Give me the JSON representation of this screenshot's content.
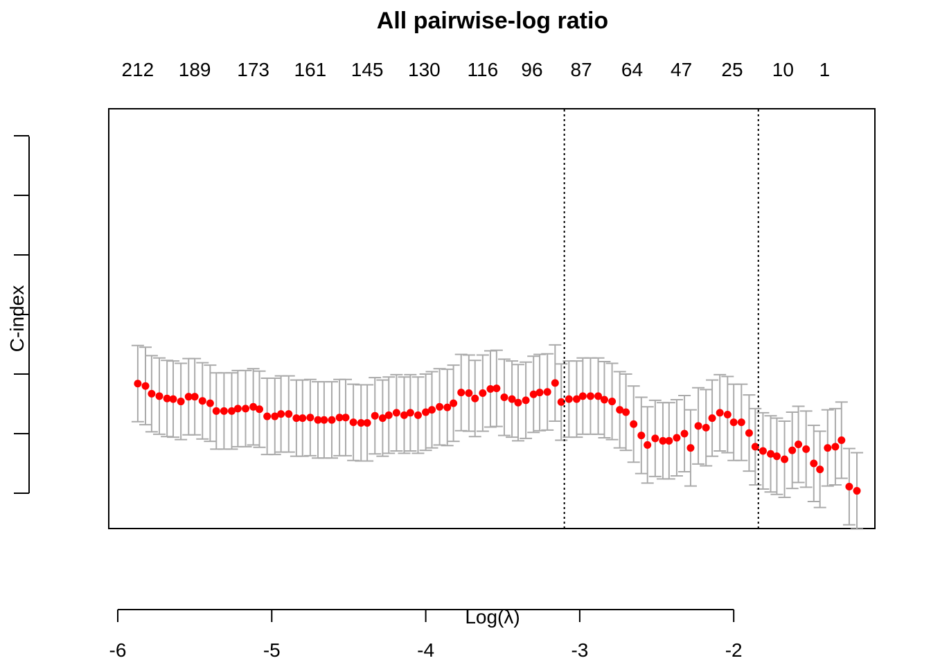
{
  "chart_data": {
    "type": "scatter",
    "title": "All pairwise-log ratio",
    "xlabel": "Log(λ)",
    "ylabel": "C-index",
    "xlim": [
      -6.0,
      -1.08
    ],
    "x_ticks": [
      "-6",
      "-5",
      "-4",
      "-3",
      "-2"
    ],
    "x_tick_values": [
      -6,
      -5,
      -4,
      -3,
      -2
    ],
    "top_ticks": [
      "212",
      "189",
      "173",
      "161",
      "145",
      "130",
      "116",
      "96",
      "87",
      "64",
      "47",
      "25",
      "10",
      "1"
    ],
    "top_tick_x": [
      -5.87,
      -5.5,
      -5.12,
      -4.75,
      -4.38,
      -4.01,
      -3.63,
      -3.31,
      -2.99,
      -2.66,
      -2.34,
      -2.01,
      -1.68,
      -1.41
    ],
    "vlines": [
      -3.1,
      -1.84
    ],
    "point_color": "#ff0000",
    "errorbar_color": "#aaaaaa",
    "series": [
      {
        "x": [
          -5.87,
          -5.82,
          -5.78,
          -5.73,
          -5.68,
          -5.64,
          -5.59,
          -5.54,
          -5.5,
          -5.45,
          -5.4,
          -5.36,
          -5.31,
          -5.26,
          -5.22,
          -5.17,
          -5.12,
          -5.08,
          -5.03,
          -4.98,
          -4.94,
          -4.89,
          -4.84,
          -4.8,
          -4.75,
          -4.7,
          -4.66,
          -4.61,
          -4.56,
          -4.52,
          -4.47,
          -4.42,
          -4.38,
          -4.33,
          -4.28,
          -4.24,
          -4.19,
          -4.14,
          -4.1,
          -4.05,
          -4.0,
          -3.96,
          -3.91,
          -3.86,
          -3.82,
          -3.77,
          -3.72,
          -3.68,
          -3.63,
          -3.58,
          -3.54,
          -3.49,
          -3.44,
          -3.4,
          -3.35,
          -3.3,
          -3.26,
          -3.21,
          -3.16,
          -3.12,
          -3.07,
          -3.02,
          -2.98,
          -2.93,
          -2.88,
          -2.84,
          -2.79,
          -2.74,
          -2.7,
          -2.65,
          -2.6,
          -2.56,
          -2.51,
          -2.46,
          -2.42,
          -2.37,
          -2.32,
          -2.28,
          -2.23,
          -2.18,
          -2.14,
          -2.09,
          -2.04,
          -2.0,
          -1.95,
          -1.9,
          -1.86,
          -1.81,
          -1.76,
          -1.72,
          -1.67,
          -1.62,
          -1.58,
          -1.53,
          -1.48,
          -1.44,
          -1.39,
          -1.34,
          -1.3,
          -1.25,
          -1.2
        ],
        "y": [
          68.4,
          68.0,
          66.7,
          66.3,
          65.9,
          65.8,
          65.4,
          66.2,
          66.2,
          65.5,
          65.1,
          63.8,
          63.8,
          63.8,
          64.2,
          64.2,
          64.5,
          64.1,
          62.9,
          62.9,
          63.3,
          63.3,
          62.6,
          62.6,
          62.7,
          62.3,
          62.3,
          62.3,
          62.7,
          62.7,
          61.9,
          61.8,
          61.8,
          63.0,
          62.6,
          63.1,
          63.5,
          63.1,
          63.5,
          63.1,
          63.6,
          64.0,
          64.5,
          64.4,
          65.1,
          66.9,
          66.8,
          65.9,
          66.8,
          67.5,
          67.6,
          66.1,
          65.8,
          65.2,
          65.6,
          66.6,
          66.9,
          67.0,
          68.5,
          65.3,
          65.8,
          65.8,
          66.3,
          66.3,
          66.3,
          65.7,
          65.4,
          64.0,
          63.6,
          61.6,
          59.7,
          58.1,
          59.2,
          58.8,
          58.8,
          59.3,
          60.0,
          57.6,
          61.3,
          61.0,
          62.6,
          63.5,
          63.2,
          61.9,
          61.9,
          60.1,
          57.8,
          57.1,
          56.6,
          56.2,
          55.7,
          57.2,
          58.2,
          57.4,
          55.0,
          54.0,
          57.6,
          57.8,
          58.9,
          51.1,
          50.4
        ],
        "lower": [
          62.0,
          61.5,
          60.3,
          59.9,
          59.5,
          59.4,
          59.0,
          59.8,
          59.8,
          59.1,
          58.7,
          57.4,
          57.4,
          57.4,
          57.8,
          57.8,
          58.1,
          57.7,
          56.5,
          56.5,
          56.9,
          56.9,
          56.2,
          56.2,
          56.3,
          55.9,
          55.9,
          55.9,
          56.3,
          56.3,
          55.5,
          55.4,
          55.4,
          56.6,
          56.2,
          56.7,
          57.1,
          56.7,
          57.1,
          56.7,
          57.2,
          57.6,
          58.1,
          58.0,
          58.7,
          60.5,
          60.4,
          59.5,
          60.4,
          61.1,
          61.2,
          59.7,
          59.4,
          58.8,
          59.2,
          60.2,
          60.5,
          60.6,
          62.1,
          58.9,
          59.4,
          59.4,
          59.9,
          59.9,
          59.9,
          59.3,
          59.0,
          57.6,
          57.2,
          55.2,
          53.3,
          51.7,
          52.8,
          52.4,
          52.4,
          52.9,
          53.6,
          51.2,
          54.9,
          54.6,
          56.2,
          57.1,
          56.8,
          55.5,
          55.5,
          53.7,
          51.4,
          50.7,
          50.2,
          49.8,
          49.3,
          50.8,
          51.8,
          51.0,
          48.6,
          47.6,
          51.2,
          51.4,
          52.5,
          44.7,
          44.0
        ],
        "upper": [
          74.8,
          74.5,
          73.1,
          72.7,
          72.3,
          72.2,
          71.8,
          72.6,
          72.6,
          71.9,
          71.5,
          70.2,
          70.2,
          70.2,
          70.6,
          70.6,
          70.9,
          70.5,
          69.3,
          69.3,
          69.7,
          69.7,
          69.0,
          69.0,
          69.1,
          68.7,
          68.7,
          68.7,
          69.1,
          69.1,
          68.3,
          68.2,
          68.2,
          69.4,
          69.0,
          69.5,
          69.9,
          69.5,
          69.9,
          69.5,
          70.0,
          70.4,
          70.9,
          70.8,
          71.5,
          73.3,
          73.2,
          72.3,
          73.2,
          73.9,
          74.0,
          72.5,
          72.2,
          71.6,
          72.0,
          73.0,
          73.3,
          73.4,
          74.9,
          71.7,
          72.2,
          72.2,
          72.7,
          72.7,
          72.7,
          72.1,
          71.8,
          70.4,
          70.0,
          68.0,
          66.1,
          64.5,
          65.6,
          65.2,
          65.2,
          65.7,
          66.4,
          64.0,
          67.7,
          67.4,
          69.0,
          69.9,
          69.6,
          68.3,
          68.3,
          66.5,
          64.2,
          63.5,
          63.0,
          62.6,
          62.1,
          63.6,
          64.6,
          63.8,
          61.4,
          60.4,
          64.0,
          64.2,
          65.3,
          57.5,
          56.8
        ]
      }
    ]
  }
}
